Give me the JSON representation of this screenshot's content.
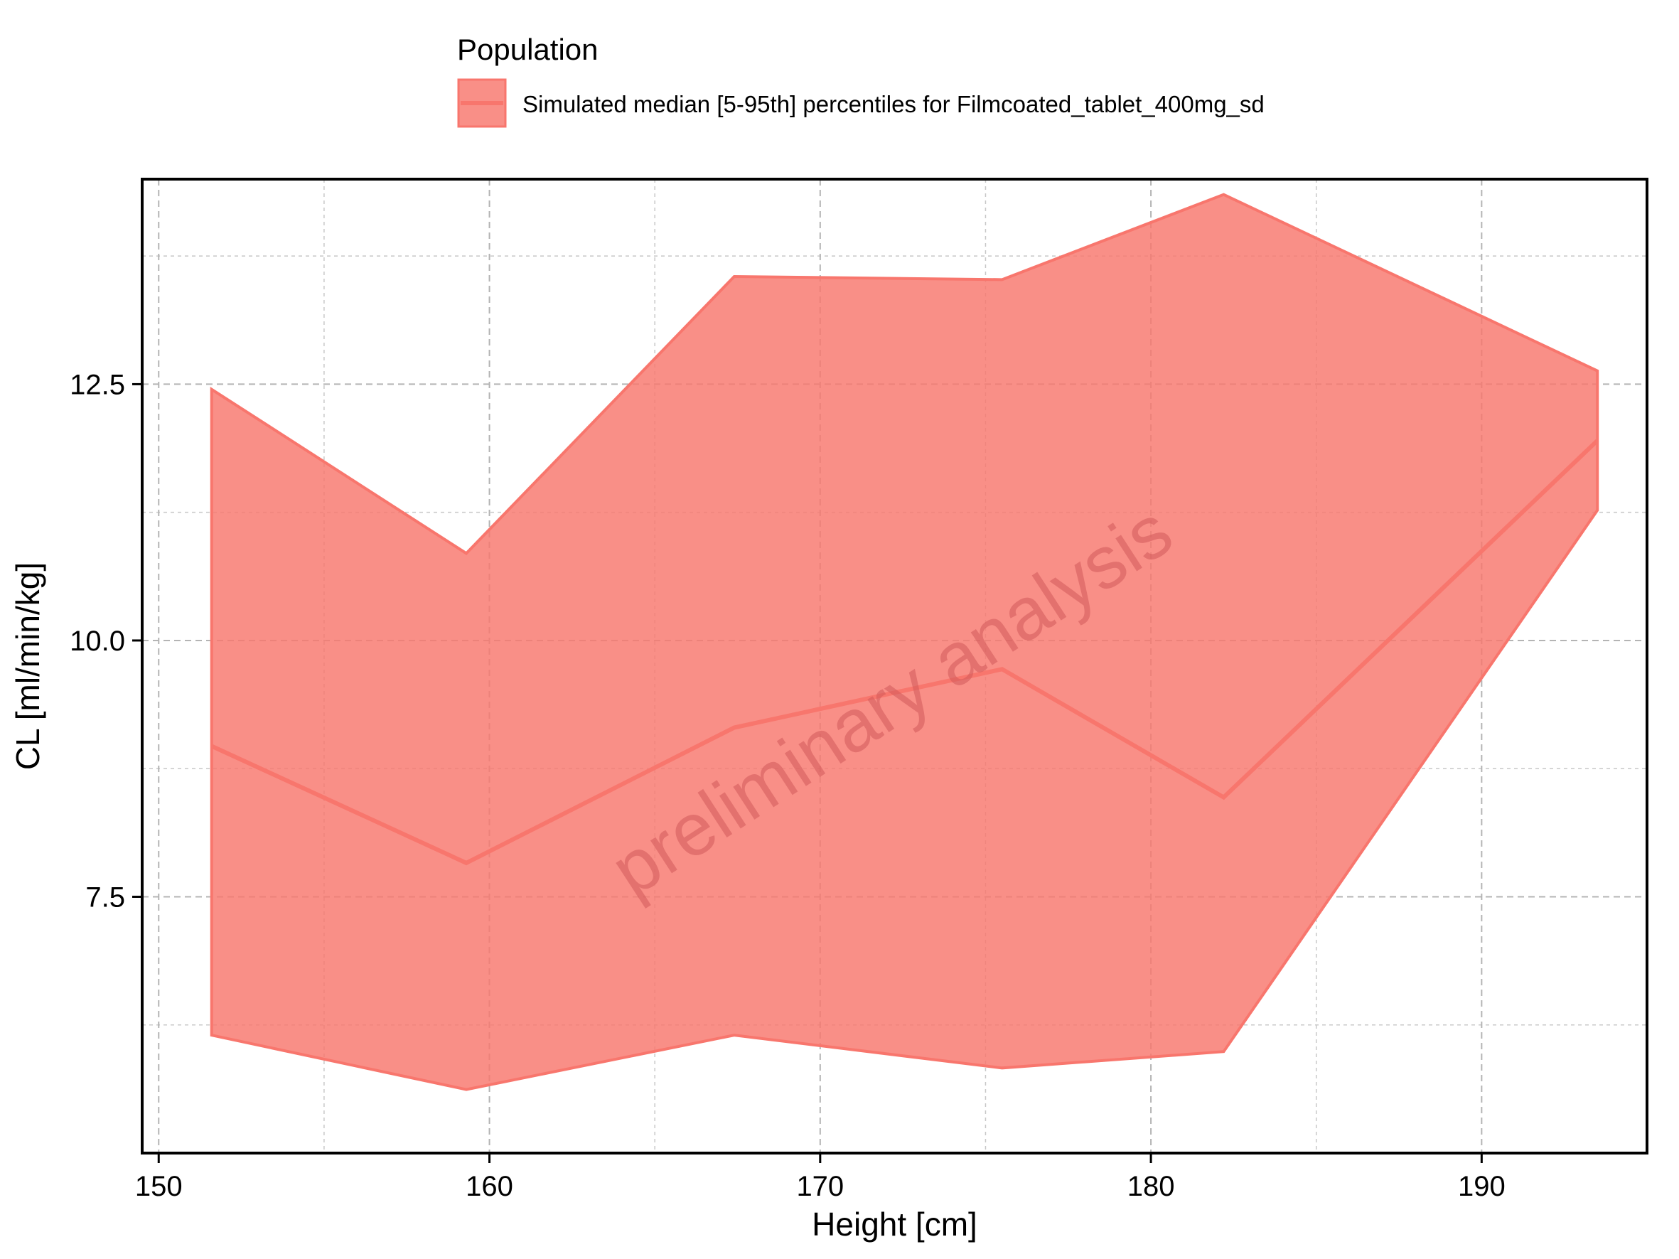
{
  "chart_data": {
    "type": "area",
    "title": "",
    "xlabel": "Height [cm]",
    "ylabel": "CL [ml/min/kg]",
    "xlim": [
      149.5,
      195.0
    ],
    "ylim": [
      5.0,
      14.5
    ],
    "x_ticks": [
      150,
      160,
      170,
      180,
      190
    ],
    "x_tick_labels": [
      "150",
      "160",
      "170",
      "180",
      "190"
    ],
    "y_ticks": [
      7.5,
      10.0,
      12.5
    ],
    "y_tick_labels": [
      "7.5",
      "10.0",
      "12.5"
    ],
    "grid": true,
    "legend_title": "Population",
    "legend_position": "top",
    "watermark": "preliminary analysis",
    "colors": {
      "fill": "#f8766d",
      "fill_opacity": 0.82,
      "line": "#f8766d",
      "watermark": "#d25a5a",
      "grid": "#c8c8c8",
      "frame": "#000000"
    },
    "series": [
      {
        "name": "Simulated median [5-95th] percentiles for Filmcoated_tablet_400mg_sd",
        "x": [
          151.6,
          159.3,
          167.4,
          175.5,
          182.2,
          193.5
        ],
        "median": [
          8.97,
          7.83,
          9.15,
          9.72,
          8.47,
          11.95
        ],
        "lower": [
          6.15,
          5.62,
          6.15,
          5.83,
          5.99,
          11.27
        ],
        "upper": [
          12.45,
          10.85,
          13.55,
          13.52,
          14.35,
          12.63
        ]
      }
    ]
  }
}
